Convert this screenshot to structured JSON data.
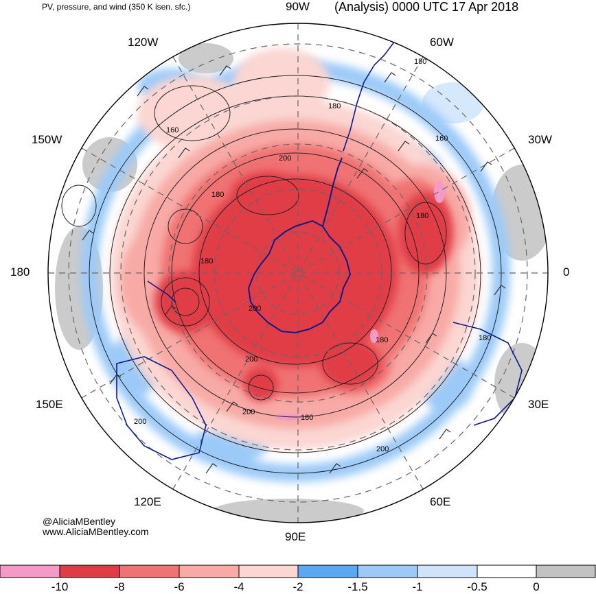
{
  "header": {
    "left_title": "PV, pressure, and wind (350 K isen. sfc.)",
    "right_title": "(Analysis) 0000 UTC 17 Apr 2018"
  },
  "credits": {
    "twitter": "@AliciaMBentley",
    "website": "www.AliciaMBentley.com"
  },
  "longitude_labels": [
    "90W",
    "60W",
    "30W",
    "0",
    "30E",
    "60E",
    "90E",
    "120E",
    "150E",
    "180",
    "150W",
    "120W"
  ],
  "contour_labels": [
    "180",
    "180",
    "160",
    "160",
    "200",
    "180",
    "180",
    "180",
    "200",
    "180",
    "200",
    "200",
    "180",
    "200",
    "180",
    "200"
  ],
  "colorbar": {
    "colors": [
      "#f49ac6",
      "#e03c46",
      "#f07272",
      "#f8aaa6",
      "#fbd6d2",
      "#5aa8f0",
      "#9ccaf8",
      "#cfe4fb",
      "#ffffff",
      "#c2c2c2"
    ],
    "tick_labels": [
      "-10",
      "-8",
      "-6",
      "-4",
      "-2",
      "-1.5",
      "-1",
      "-0.5",
      "0"
    ]
  },
  "palette": {
    "coastline": "#0c1a8c",
    "pv_strong": "#e03c46",
    "pv_moderate": "#f07272",
    "pv_weak": "#f8aaa6",
    "pv_faint": "#fbd6d2",
    "pv_positive_blue": "#9ccaf8",
    "gray": "#c2c2c2"
  }
}
